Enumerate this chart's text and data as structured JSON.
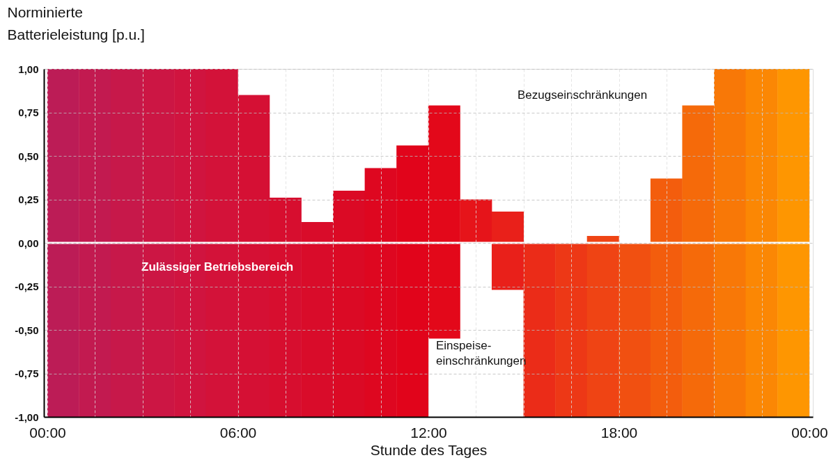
{
  "chart_data": {
    "type": "bar",
    "ylabel": "Norminierte\nBatterieleistung [p.u.]",
    "xlabel": "Stunde des Tages",
    "x": [
      0.5,
      1.5,
      2.5,
      3.5,
      4.5,
      5.5,
      6.5,
      7.5,
      8.5,
      9.5,
      10.5,
      11.5,
      12.5,
      13.5,
      14.5,
      15.5,
      16.5,
      17.5,
      18.5,
      19.5,
      20.5,
      21.5,
      22.5,
      23.5
    ],
    "base": [
      -1,
      -1,
      -1,
      -1,
      -1,
      -1,
      -1,
      -1,
      -1,
      -1,
      -1,
      -1,
      -0.55,
      0,
      -0.27,
      -1,
      -1,
      -1,
      -1,
      -1,
      -1,
      -1,
      -1,
      -1
    ],
    "values": [
      2,
      2,
      2,
      2,
      2,
      2,
      1.85,
      1.26,
      1.12,
      1.3,
      1.43,
      1.56,
      1.34,
      0.25,
      0.45,
      1,
      1,
      1.04,
      1,
      1.37,
      1.79,
      2,
      2,
      2
    ],
    "colors": [
      "#bc1c56",
      "#c21a50",
      "#c7184a",
      "#cc1644",
      "#d0143f",
      "#d31239",
      "#d51034",
      "#d70e2f",
      "#d90c2a",
      "#db0a25",
      "#de0720",
      "#e1041b",
      "#e3081a",
      "#e6141a",
      "#e9201a",
      "#eb2c18",
      "#ed3816",
      "#ef4414",
      "#f15011",
      "#f35d0d",
      "#f56a0a",
      "#f87807",
      "#fb8704",
      "#fe9601"
    ],
    "xlim": [
      0,
      24
    ],
    "xticks": [
      {
        "value": 0,
        "label": "00:00"
      },
      {
        "value": 1.5,
        "label": null
      },
      {
        "value": 3,
        "label": null
      },
      {
        "value": 4.5,
        "label": null
      },
      {
        "value": 6,
        "label": "06:00"
      },
      {
        "value": 7.5,
        "label": null
      },
      {
        "value": 9,
        "label": null
      },
      {
        "value": 10.5,
        "label": null
      },
      {
        "value": 12,
        "label": "12:00"
      },
      {
        "value": 13.5,
        "label": null
      },
      {
        "value": 15,
        "label": null
      },
      {
        "value": 16.5,
        "label": null
      },
      {
        "value": 18,
        "label": "18:00"
      },
      {
        "value": 19.5,
        "label": null
      },
      {
        "value": 21,
        "label": null
      },
      {
        "value": 22.5,
        "label": null
      },
      {
        "value": 24,
        "label": "00:00"
      }
    ],
    "ylim": [
      -1,
      1
    ],
    "yticks": [
      {
        "value": 1,
        "label": "1,00"
      },
      {
        "value": 0.75,
        "label": "0,75"
      },
      {
        "value": 0.5,
        "label": "0,50"
      },
      {
        "value": 0.25,
        "label": "0,25"
      },
      {
        "value": 0,
        "label": "0,00"
      },
      {
        "value": -0.25,
        "label": "-0,25"
      },
      {
        "value": -0.5,
        "label": "-0,50"
      },
      {
        "value": -0.75,
        "label": "-0,75"
      },
      {
        "value": -1,
        "label": "-1,00"
      }
    ],
    "grid": true,
    "ref_lines": [
      {
        "axis": "y",
        "value": 0,
        "color": "#ffffff"
      }
    ],
    "annotations": [
      "Bezugseinschränkungen",
      "Zulässiger Betriebsbereich",
      "Einspeise-\neinschränkungen"
    ]
  }
}
